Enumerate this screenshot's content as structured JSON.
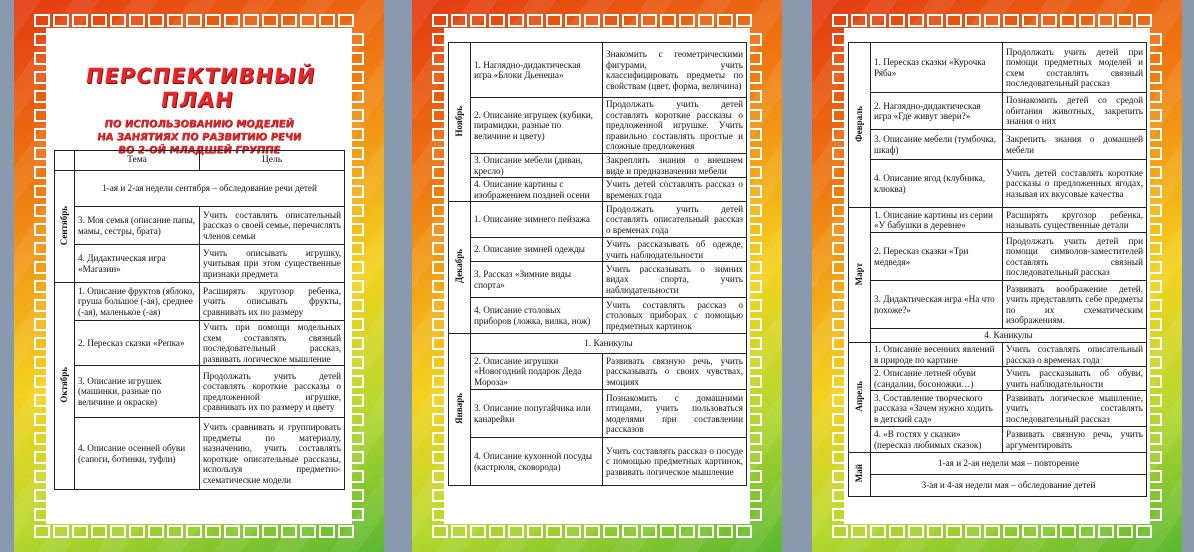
{
  "page1": {
    "title": "ПЕРСПЕКТИВНЫЙ ПЛАН",
    "subtitle": [
      "ПО ИСПОЛЬЗОВАНИЮ МОДЕЛЕЙ",
      "НА ЗАНЯТИЯХ ПО РАЗВИТИЮ РЕЧИ",
      "ВО 2-ОЙ МЛАДШЕЙ ГРУППЕ"
    ],
    "col_theme": "Тема",
    "col_goal": "Цель",
    "sep_span": "1-ая и 2-ая недели сентября – обследование речи детей",
    "months": [
      "Сентябрь",
      "Октябрь"
    ],
    "rows": [
      {
        "theme": "3. Моя семья (описание папы, мамы, сестры, брата)",
        "goal": "Учить составлять описательный рассказ о своей семье, перечислять членов семьи"
      },
      {
        "theme": "4. Дидактическая игра «Магазин»",
        "goal": "Учить описывать игрушку, учитывая при этом существенные признаки предмета"
      },
      {
        "theme": "1. Описание фруктов (яблоко, груша большое (-ая), среднее (-ая), маленькое (-ая)",
        "goal": "Расширять кругозор ребенка, учить описывать фрукты, сравнивать их по размеру"
      },
      {
        "theme": "2. Пересказ сказки «Репка»",
        "goal": "Учить при помощи модельных схем составлять связный последовательный рассказ, развивать логическое мышление"
      },
      {
        "theme": "3. Описание игрушек (машинки, разные по величине и окраске)",
        "goal": "Продолжать учить детей составлять короткие рассказы о предложенной игрушке, сравнивать их по размеру и цвету"
      },
      {
        "theme": "4. Описание осенней обуви (сапоги, ботинки, туфли)",
        "goal": "Учить сравнивать и группировать предметы по материалу, назначению, учить составлять короткие описательные рассказы, используя предметно-схематические модели"
      }
    ]
  },
  "page2": {
    "months": [
      "Ноябрь",
      "Декабрь",
      "Январь"
    ],
    "rows": [
      {
        "theme": "1. Наглядно-дидактическая игра «Блоки Дьенеша»",
        "goal": "Знакомить с геометрическими фигурами, учить классифицировать предметы по свойствам (цвет, форма, величина)"
      },
      {
        "theme": "2. Описание игрушек (кубики, пирамидки, разные по величине и цвету)",
        "goal": "Продолжать учить детей составлять короткие рассказы о предложенной игрушке. Учить правильно составлять простые и сложные предложения"
      },
      {
        "theme": "3. Описание мебели (диван, кресло)",
        "goal": "Закреплять знания о внешнем виде и предназначении мебели"
      },
      {
        "theme": "4. Описание картины с изображением поздней осени",
        "goal": "Учить детей составлять рассказ о временах года"
      },
      {
        "theme": "1. Описание зимнего пейзажа",
        "goal": "Продолжать учить детей составлять описательный рассказ о временах года"
      },
      {
        "theme": "2. Описание зимней одежды",
        "goal": "Учить рассказывать об одежде, учить наблюдательности"
      },
      {
        "theme": "3. Рассказ «Зимние виды спорта»",
        "goal": "Учить рассказывать о зимних видах спорта, учить наблюдательности"
      },
      {
        "theme": "4. Описание столовых приборов (ложка, вилка, нож)",
        "goal": "Учить составлять рассказ о столовых приборах с помощью предметных картинок"
      },
      {
        "theme": "2. Описание игрушки «Новогодний подарок Деда Мороза»",
        "goal": "Развивать связную речь, учить рассказывать о своих чувствах, эмоциях"
      },
      {
        "theme": "3. Описание попугайчика или канарейки",
        "goal": "Познакомить с домашними птицами, учить пользоваться моделями при составлении рассказов"
      },
      {
        "theme": "4. Описание кухонной посуды (кастрюля, сковорода)",
        "goal": "Учить составлять рассказ о посуде с помощью предметных картинок, развивать логическое мышление"
      }
    ],
    "holiday": "1.  Каникулы"
  },
  "page3": {
    "months": [
      "Февраль",
      "Март",
      "Апрель",
      "Май"
    ],
    "rows": [
      {
        "theme": "1. Пересказ сказки «Курочка Ряба»",
        "goal": "Продолжать учить детей при помощи предметных моделей и схем составлять связный последовательный рассказ"
      },
      {
        "theme": "2. Наглядно-дидактическая игра «Где живут звери?»",
        "goal": "Познакомить детей со средой обитания животных, закрепить знания о них"
      },
      {
        "theme": "3. Описание мебели (тумбочка, шкаф)",
        "goal": "Закрепить знания о домашней мебели"
      },
      {
        "theme": "4. Описание ягод (клубника, клюква)",
        "goal": "Учить детей составлять короткие рассказы о предложенных ягодах, называя их вкусовые качества"
      },
      {
        "theme": "1. Описание картины из серии «У бабушки в деревне»",
        "goal": "Расширять кругозор ребенка, называть существенные детали"
      },
      {
        "theme": "2. Пересказ сказки «Три медведя»",
        "goal": "Продолжать учить детей при помощи символов-заместителей составлять связный последовательный рассказ"
      },
      {
        "theme": "3. Дидактическая игра «На что похоже?»",
        "goal": "Развивать воображение детей, учить представлять себе предметы по их схематическим изображениям."
      },
      {
        "theme": "1. Описание весенних явлений в природе по картине",
        "goal": "Учить составлять описательный рассказ о временах года"
      },
      {
        "theme": "2. Описание летней обуви (сандалии, босоножки…)",
        "goal": "Учить рассказывать об обуви, учить наблюдательности"
      },
      {
        "theme": "3. Составление творческого рассказа «Зачем нужно ходить в детский сад»",
        "goal": "Развивать логическое мышление, учить составлять последовательный рассказ"
      },
      {
        "theme": "4. «В гостях у сказки» (пересказ любимых сказок)",
        "goal": "Развивать связную речь, учить аргументировать"
      }
    ],
    "holiday": "4.  Каникулы",
    "may_1": "1-ая и 2-ая недели мая – повторение",
    "may_2": "3-ая и 4-ая недели мая – обследование детей"
  }
}
